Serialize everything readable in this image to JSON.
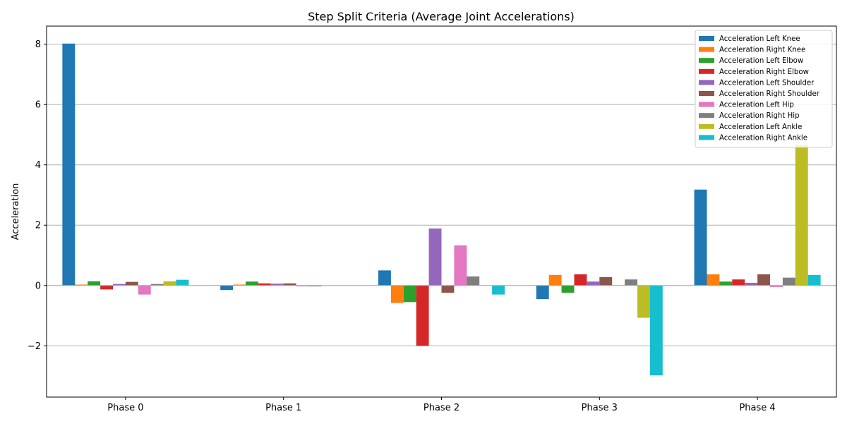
{
  "chart_data": {
    "type": "bar",
    "title": "Step Split Criteria (Average Joint Accelerations)",
    "xlabel": "",
    "ylabel": "Acceleration",
    "categories": [
      "Phase 0",
      "Phase 1",
      "Phase 2",
      "Phase 3",
      "Phase 4"
    ],
    "ylim": [
      -3.7,
      8.6
    ],
    "yticks": [
      -2,
      0,
      2,
      4,
      6,
      8
    ],
    "ytick_labels": [
      "−2",
      "0",
      "2",
      "4",
      "6",
      "8"
    ],
    "grid": "horizontal",
    "legend_position": "top-right",
    "series": [
      {
        "name": "Acceleration Left Knee",
        "color": "#1f77b4",
        "values": [
          8.02,
          -0.15,
          0.5,
          -0.45,
          3.18
        ]
      },
      {
        "name": "Acceleration Right Knee",
        "color": "#ff7f0e",
        "values": [
          0.03,
          0.03,
          -0.58,
          0.35,
          0.37
        ]
      },
      {
        "name": "Acceleration Left Elbow",
        "color": "#2ca02c",
        "values": [
          0.14,
          0.13,
          -0.55,
          -0.24,
          0.13
        ]
      },
      {
        "name": "Acceleration Right Elbow",
        "color": "#d62728",
        "values": [
          -0.13,
          0.07,
          -2.0,
          0.37,
          0.2
        ]
      },
      {
        "name": "Acceleration Left Shoulder",
        "color": "#9467bd",
        "values": [
          0.05,
          0.06,
          1.89,
          0.13,
          0.09
        ]
      },
      {
        "name": "Acceleration Right Shoulder",
        "color": "#8c564b",
        "values": [
          0.12,
          0.07,
          -0.24,
          0.28,
          0.37
        ]
      },
      {
        "name": "Acceleration Left Hip",
        "color": "#e377c2",
        "values": [
          -0.3,
          -0.03,
          1.33,
          0.0,
          -0.05
        ]
      },
      {
        "name": "Acceleration Right Hip",
        "color": "#7f7f7f",
        "values": [
          0.05,
          -0.03,
          0.3,
          0.2,
          0.26
        ]
      },
      {
        "name": "Acceleration Left Ankle",
        "color": "#bcbd22",
        "values": [
          0.14,
          0.0,
          0.0,
          -1.07,
          4.67
        ]
      },
      {
        "name": "Acceleration Right Ankle",
        "color": "#17becf",
        "values": [
          0.19,
          0.0,
          -0.3,
          -2.98,
          0.35
        ]
      }
    ]
  }
}
